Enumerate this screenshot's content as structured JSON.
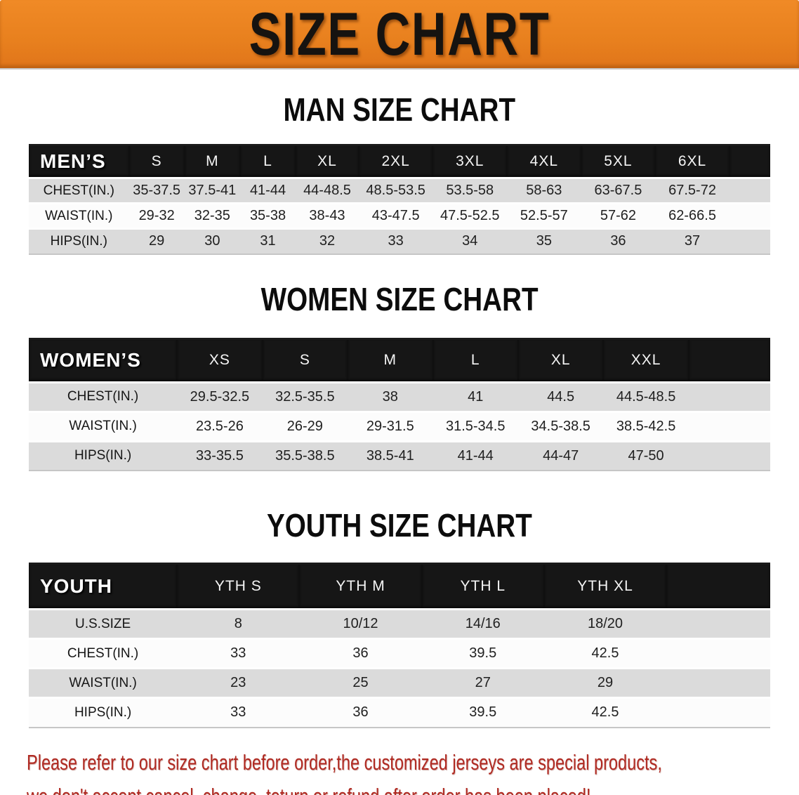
{
  "banner": {
    "title": "SIZE CHART"
  },
  "colors": {
    "banner_bg": "#e8801e",
    "table_header_bg": "#161616",
    "row_alt_bg": "#dbdbdb",
    "row_plain_bg": "#fcfcfc",
    "disclaimer_text": "#b02a22"
  },
  "sections": [
    {
      "id": "men",
      "heading": "MAN SIZE CHART",
      "table": {
        "header_label": "MEN’S",
        "columns": [
          "S",
          "M",
          "L",
          "XL",
          "2XL",
          "3XL",
          "4XL",
          "5XL",
          "6XL"
        ],
        "rows": [
          {
            "label": "CHEST(IN.)",
            "values": [
              "35-37.5",
              "37.5-41",
              "41-44",
              "44-48.5",
              "48.5-53.5",
              "53.5-58",
              "58-63",
              "63-67.5",
              "67.5-72"
            ]
          },
          {
            "label": "WAIST(IN.)",
            "values": [
              "29-32",
              "32-35",
              "35-38",
              "38-43",
              "43-47.5",
              "47.5-52.5",
              "52.5-57",
              "57-62",
              "62-66.5"
            ]
          },
          {
            "label": "HIPS(IN.)",
            "values": [
              "29",
              "30",
              "31",
              "32",
              "33",
              "34",
              "35",
              "36",
              "37"
            ]
          }
        ]
      }
    },
    {
      "id": "women",
      "heading": "WOMEN SIZE CHART",
      "table": {
        "header_label": "WOMEN’S",
        "columns": [
          "XS",
          "S",
          "M",
          "L",
          "XL",
          "XXL"
        ],
        "rows": [
          {
            "label": "CHEST(IN.)",
            "values": [
              "29.5-32.5",
              "32.5-35.5",
              "38",
              "41",
              "44.5",
              "44.5-48.5"
            ]
          },
          {
            "label": "WAIST(IN.)",
            "values": [
              "23.5-26",
              "26-29",
              "29-31.5",
              "31.5-34.5",
              "34.5-38.5",
              "38.5-42.5"
            ]
          },
          {
            "label": "HIPS(IN.)",
            "values": [
              "33-35.5",
              "35.5-38.5",
              "38.5-41",
              "41-44",
              "44-47",
              "47-50"
            ]
          }
        ]
      }
    },
    {
      "id": "youth",
      "heading": "YOUTH SIZE CHART",
      "table": {
        "header_label": "YOUTH",
        "columns": [
          "YTH S",
          "YTH M",
          "YTH L",
          "YTH XL"
        ],
        "rows": [
          {
            "label": "U.S.SIZE",
            "values": [
              "8",
              "10/12",
              "14/16",
              "18/20"
            ]
          },
          {
            "label": "CHEST(IN.)",
            "values": [
              "33",
              "36",
              "39.5",
              "42.5"
            ]
          },
          {
            "label": "WAIST(IN.)",
            "values": [
              "23",
              "25",
              "27",
              "29"
            ]
          },
          {
            "label": "HIPS(IN.)",
            "values": [
              "33",
              "36",
              "39.5",
              "42.5"
            ]
          }
        ]
      }
    }
  ],
  "disclaimer": {
    "line1": "Please refer to our size chart before order,the customized jerseys are special products,",
    "line2": "we don't accept cancel, change, teturn or refund after order has been placed!"
  }
}
